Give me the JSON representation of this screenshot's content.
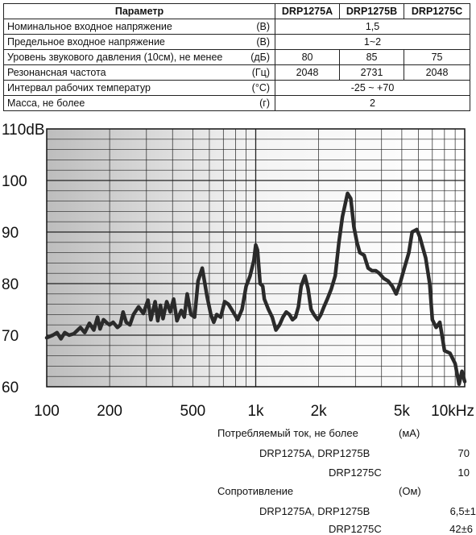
{
  "table": {
    "header": [
      "Параметр",
      "DRP1275A",
      "DRP1275B",
      "DRP1275C"
    ],
    "rows": [
      {
        "name": "Номинальное входное напряжение",
        "unit": "(В)",
        "values": [
          "1,5"
        ]
      },
      {
        "name": "Предельное входное напряжение",
        "unit": "(В)",
        "values": [
          "1~2"
        ]
      },
      {
        "name": "Уровень звукового давления (10см), не менее",
        "unit": "(дБ)",
        "values": [
          "80",
          "85",
          "75"
        ]
      },
      {
        "name": "Резонансная частота",
        "unit": "(Гц)",
        "values": [
          "2048",
          "2731",
          "2048"
        ]
      },
      {
        "name": "Интервал рабочих температур",
        "unit": "(°С)",
        "values": [
          "-25 ~ +70"
        ]
      },
      {
        "name": "Масса, не более",
        "unit": "(г)",
        "values": [
          "2"
        ]
      }
    ]
  },
  "chart_data": {
    "type": "line",
    "xscale": "log",
    "xlim": [
      100,
      10000
    ],
    "ylim": [
      60,
      110
    ],
    "grid": true,
    "y_ticks": [
      "110dB",
      "100",
      "90",
      "80",
      "70",
      "60"
    ],
    "x_ticks": [
      {
        "value": 100,
        "label": "100"
      },
      {
        "value": 200,
        "label": "200"
      },
      {
        "value": 500,
        "label": "500"
      },
      {
        "value": 1000,
        "label": "1k"
      },
      {
        "value": 2000,
        "label": "2k"
      },
      {
        "value": 5000,
        "label": "5k"
      },
      {
        "value": 10000,
        "label": "10kHz"
      }
    ],
    "series": [
      {
        "color": "#2a2a2a",
        "x": [
          100,
          107,
          112,
          117,
          122,
          128,
          135,
          145,
          152,
          160,
          168,
          175,
          180,
          187,
          195,
          200,
          208,
          218,
          225,
          232,
          240,
          250,
          260,
          275,
          290,
          305,
          315,
          330,
          340,
          350,
          360,
          375,
          390,
          405,
          420,
          440,
          455,
          470,
          490,
          510,
          530,
          555,
          585,
          610,
          630,
          650,
          680,
          710,
          740,
          780,
          820,
          860,
          900,
          940,
          980,
          1000,
          1020,
          1050,
          1080,
          1100,
          1150,
          1200,
          1250,
          1300,
          1350,
          1400,
          1450,
          1500,
          1550,
          1600,
          1650,
          1720,
          1780,
          1840,
          1900,
          1980,
          2050,
          2120,
          2200,
          2300,
          2400,
          2500,
          2600,
          2750,
          2850,
          2950,
          3050,
          3150,
          3300,
          3450,
          3600,
          3750,
          3900,
          4100,
          4300,
          4500,
          4700,
          4900,
          5100,
          5400,
          5600,
          5900,
          6100,
          6500,
          6800,
          7000,
          7300,
          7600,
          8000,
          8500,
          9000,
          9400,
          9700,
          10000
        ],
        "y": [
          69.5,
          70,
          70.5,
          69.3,
          70.5,
          70,
          70.3,
          71.5,
          70.5,
          72.3,
          71,
          73.5,
          71.2,
          73,
          72.3,
          72,
          72.5,
          71.5,
          72,
          74.5,
          72.5,
          72,
          74,
          75.5,
          74.2,
          76.8,
          73,
          76.5,
          72.8,
          75.8,
          73.2,
          76.5,
          74.5,
          77,
          72.8,
          74.8,
          73.5,
          78,
          74,
          73.5,
          80.5,
          83,
          77.5,
          74,
          72.5,
          74,
          73.5,
          76.5,
          76,
          74.5,
          73,
          75,
          79.5,
          81.5,
          84.5,
          87.5,
          86.5,
          80,
          79.5,
          77,
          75,
          73.5,
          71,
          72,
          73.5,
          74.5,
          74,
          73,
          73.5,
          75.5,
          79.5,
          81.5,
          79,
          75,
          74,
          73,
          74,
          75.5,
          77,
          79,
          81.5,
          88,
          93,
          97.5,
          96.5,
          91,
          88,
          86,
          85.5,
          83,
          82.5,
          82.5,
          82,
          81,
          80.5,
          79.5,
          78,
          80,
          82.5,
          86,
          90,
          90.5,
          89,
          85,
          80,
          73,
          71.5,
          72.5,
          67,
          66.5,
          64.5,
          60.5,
          63,
          61
        ]
      }
    ]
  },
  "bottom": {
    "current_label": "Потребляемый ток, не более",
    "current_unit": "(мА)",
    "current_ab_label": "DRP1275A, DRP1275B",
    "current_ab_value": "70",
    "current_c_label": "DRP1275C",
    "current_c_value": "10",
    "resist_label": "Сопротивление",
    "resist_unit": "(Ом)",
    "resist_ab_label": "DRP1275A, DRP1275B",
    "resist_ab_value": "6,5±1",
    "resist_c_label": "DRP1275C",
    "resist_c_value": "42±6"
  }
}
